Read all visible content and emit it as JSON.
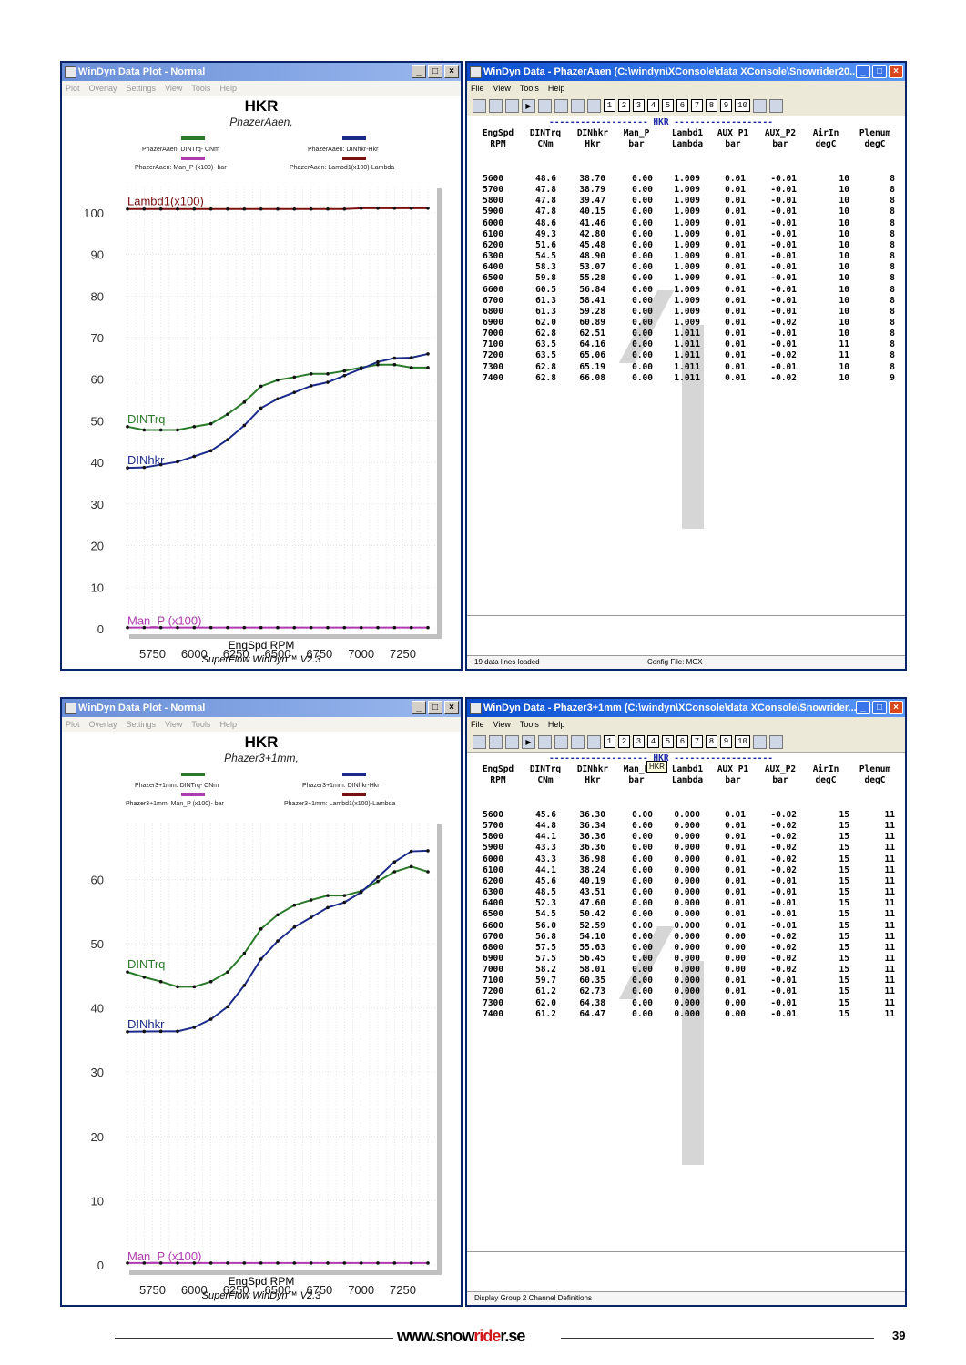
{
  "colors": {
    "trq": "#2a7a2a",
    "hkr": "#1c2a8a",
    "manp": "#b03ab0",
    "lambda": "#7a1010"
  },
  "common_menu": [
    "Plot",
    "Overlay",
    "Settings",
    "View",
    "Tools",
    "Help"
  ],
  "data_menu": [
    "File",
    "View",
    "Tools",
    "Help"
  ],
  "toolbar_numbers": [
    "1",
    "2",
    "3",
    "4",
    "5",
    "6",
    "7",
    "8",
    "9",
    "10"
  ],
  "plot_title": "HKR",
  "x_label": "EngSpd RPM",
  "credit": "SuperFlow WinDyn™ V2.3",
  "x_ticks": [
    "5750",
    "6000",
    "6250",
    "6500",
    "6750",
    "7000",
    "7250"
  ],
  "label_trq": "DINTrq",
  "label_hkr": "DINhkr",
  "label_manp": "Man_P (x100)",
  "label_lambda": "Lambd1(x100)",
  "table_group": "HKR",
  "table_dash_left": "------------------- ",
  "table_dash_right": " -------------------",
  "columns": [
    {
      "h1": "EngSpd",
      "h2": "RPM"
    },
    {
      "h1": "DINTrq",
      "h2": "CNm"
    },
    {
      "h1": "DINhkr",
      "h2": "Hkr"
    },
    {
      "h1": "Man_P",
      "h2": "bar"
    },
    {
      "h1": "Lambd1",
      "h2": "Lambda"
    },
    {
      "h1": "AUX P1",
      "h2": "bar"
    },
    {
      "h1": "AUX_P2",
      "h2": "bar"
    },
    {
      "h1": "AirIn",
      "h2": "degC"
    },
    {
      "h1": "Plenum",
      "h2": "degC"
    }
  ],
  "plot1": {
    "window_title": "WinDyn Data Plot - Normal",
    "subtitle": "PhazerAaen,",
    "legend": [
      "PhazerAaen: DINTrq- CNm",
      "PhazerAaen: DINhkr-Hkr",
      "PhazerAaen: Man_P (x100)- bar",
      "PhazerAaen: Lambd1(x100)-Lambda"
    ],
    "y_ticks": [
      "100",
      "90",
      "80",
      "70",
      "60",
      "50",
      "40",
      "30",
      "20",
      "10",
      "0"
    ]
  },
  "plot2": {
    "window_title": "WinDyn Data Plot - Normal",
    "subtitle": "Phazer3+1mm,",
    "legend": [
      "Phazer3+1mm: DINTrq- CNm",
      "Phazer3+1mm: DINhkr-Hkr",
      "Phazer3+1mm: Man_P (x100)- bar",
      "Phazer3+1mm: Lambd1(x100)-Lambda"
    ],
    "y_ticks": [
      "60",
      "50",
      "40",
      "30",
      "20",
      "10",
      "0"
    ]
  },
  "data1": {
    "window_title": "WinDyn Data - PhazerAaen  (C:\\windyn\\XConsole\\data XConsole\\Snowrider20...",
    "status_left": "19 data lines loaded",
    "status_right": "Config File: MCX",
    "rows": [
      [
        "5600",
        "48.6",
        "38.70",
        "0.00",
        "1.009",
        "0.01",
        "-0.01",
        "10",
        "8"
      ],
      [
        "5700",
        "47.8",
        "38.79",
        "0.00",
        "1.009",
        "0.01",
        "-0.01",
        "10",
        "8"
      ],
      [
        "5800",
        "47.8",
        "39.47",
        "0.00",
        "1.009",
        "0.01",
        "-0.01",
        "10",
        "8"
      ],
      [
        "5900",
        "47.8",
        "40.15",
        "0.00",
        "1.009",
        "0.01",
        "-0.01",
        "10",
        "8"
      ],
      [
        "6000",
        "48.6",
        "41.46",
        "0.00",
        "1.009",
        "0.01",
        "-0.01",
        "10",
        "8"
      ],
      [
        "6100",
        "49.3",
        "42.80",
        "0.00",
        "1.009",
        "0.01",
        "-0.01",
        "10",
        "8"
      ],
      [
        "6200",
        "51.6",
        "45.48",
        "0.00",
        "1.009",
        "0.01",
        "-0.01",
        "10",
        "8"
      ],
      [
        "6300",
        "54.5",
        "48.90",
        "0.00",
        "1.009",
        "0.01",
        "-0.01",
        "10",
        "8"
      ],
      [
        "6400",
        "58.3",
        "53.07",
        "0.00",
        "1.009",
        "0.01",
        "-0.01",
        "10",
        "8"
      ],
      [
        "6500",
        "59.8",
        "55.28",
        "0.00",
        "1.009",
        "0.01",
        "-0.01",
        "10",
        "8"
      ],
      [
        "6600",
        "60.5",
        "56.84",
        "0.00",
        "1.009",
        "0.01",
        "-0.01",
        "10",
        "8"
      ],
      [
        "6700",
        "61.3",
        "58.41",
        "0.00",
        "1.009",
        "0.01",
        "-0.01",
        "10",
        "8"
      ],
      [
        "6800",
        "61.3",
        "59.28",
        "0.00",
        "1.009",
        "0.01",
        "-0.01",
        "10",
        "8"
      ],
      [
        "6900",
        "62.0",
        "60.89",
        "0.00",
        "1.009",
        "0.01",
        "-0.02",
        "10",
        "8"
      ],
      [
        "7000",
        "62.8",
        "62.51",
        "0.00",
        "1.011",
        "0.01",
        "-0.01",
        "10",
        "8"
      ],
      [
        "7100",
        "63.5",
        "64.16",
        "0.00",
        "1.011",
        "0.01",
        "-0.01",
        "11",
        "8"
      ],
      [
        "7200",
        "63.5",
        "65.06",
        "0.00",
        "1.011",
        "0.01",
        "-0.02",
        "11",
        "8"
      ],
      [
        "7300",
        "62.8",
        "65.19",
        "0.00",
        "1.011",
        "0.01",
        "-0.01",
        "10",
        "8"
      ],
      [
        "7400",
        "62.8",
        "66.08",
        "0.00",
        "1.011",
        "0.01",
        "-0.02",
        "10",
        "9"
      ]
    ]
  },
  "data2": {
    "window_title": "WinDyn Data - Phazer3+1mm  (C:\\windyn\\XConsole\\data XConsole\\Snowrider...",
    "status_left": "Display Group 2 Channel Definitions",
    "tooltip": "HKR",
    "rows": [
      [
        "5600",
        "45.6",
        "36.30",
        "0.00",
        "0.000",
        "0.01",
        "-0.02",
        "15",
        "11"
      ],
      [
        "5700",
        "44.8",
        "36.34",
        "0.00",
        "0.000",
        "0.01",
        "-0.02",
        "15",
        "11"
      ],
      [
        "5800",
        "44.1",
        "36.36",
        "0.00",
        "0.000",
        "0.01",
        "-0.02",
        "15",
        "11"
      ],
      [
        "5900",
        "43.3",
        "36.36",
        "0.00",
        "0.000",
        "0.01",
        "-0.02",
        "15",
        "11"
      ],
      [
        "6000",
        "43.3",
        "36.98",
        "0.00",
        "0.000",
        "0.01",
        "-0.02",
        "15",
        "11"
      ],
      [
        "6100",
        "44.1",
        "38.24",
        "0.00",
        "0.000",
        "0.01",
        "-0.02",
        "15",
        "11"
      ],
      [
        "6200",
        "45.6",
        "40.19",
        "0.00",
        "0.000",
        "0.01",
        "-0.01",
        "15",
        "11"
      ],
      [
        "6300",
        "48.5",
        "43.51",
        "0.00",
        "0.000",
        "0.01",
        "-0.01",
        "15",
        "11"
      ],
      [
        "6400",
        "52.3",
        "47.60",
        "0.00",
        "0.000",
        "0.01",
        "-0.01",
        "15",
        "11"
      ],
      [
        "6500",
        "54.5",
        "50.42",
        "0.00",
        "0.000",
        "0.01",
        "-0.01",
        "15",
        "11"
      ],
      [
        "6600",
        "56.0",
        "52.59",
        "0.00",
        "0.000",
        "0.01",
        "-0.01",
        "15",
        "11"
      ],
      [
        "6700",
        "56.8",
        "54.10",
        "0.00",
        "0.000",
        "0.00",
        "-0.02",
        "15",
        "11"
      ],
      [
        "6800",
        "57.5",
        "55.63",
        "0.00",
        "0.000",
        "0.00",
        "-0.02",
        "15",
        "11"
      ],
      [
        "6900",
        "57.5",
        "56.45",
        "0.00",
        "0.000",
        "0.00",
        "-0.02",
        "15",
        "11"
      ],
      [
        "7000",
        "58.2",
        "58.01",
        "0.00",
        "0.000",
        "0.00",
        "-0.02",
        "15",
        "11"
      ],
      [
        "7100",
        "59.7",
        "60.35",
        "0.00",
        "0.000",
        "0.01",
        "-0.01",
        "15",
        "11"
      ],
      [
        "7200",
        "61.2",
        "62.73",
        "0.00",
        "0.000",
        "0.01",
        "-0.01",
        "15",
        "11"
      ],
      [
        "7300",
        "62.0",
        "64.38",
        "0.00",
        "0.000",
        "0.00",
        "-0.01",
        "15",
        "11"
      ],
      [
        "7400",
        "61.2",
        "64.47",
        "0.00",
        "0.000",
        "0.00",
        "-0.01",
        "15",
        "11"
      ]
    ]
  },
  "chart_data": [
    {
      "type": "line",
      "title": "HKR",
      "subtitle": "PhazerAaen,",
      "xlabel": "EngSpd RPM",
      "ylim": [
        0,
        105
      ],
      "xlim": [
        5600,
        7400
      ],
      "x": [
        5600,
        5700,
        5800,
        5900,
        6000,
        6100,
        6200,
        6300,
        6400,
        6500,
        6600,
        6700,
        6800,
        6900,
        7000,
        7100,
        7200,
        7300,
        7400
      ],
      "series": [
        {
          "name": "DINTrq",
          "values": [
            48.6,
            47.8,
            47.8,
            47.8,
            48.6,
            49.3,
            51.6,
            54.5,
            58.3,
            59.8,
            60.5,
            61.3,
            61.3,
            62.0,
            62.8,
            63.5,
            63.5,
            62.8,
            62.8
          ]
        },
        {
          "name": "DINhkr",
          "values": [
            38.7,
            38.79,
            39.47,
            40.15,
            41.46,
            42.8,
            45.48,
            48.9,
            53.07,
            55.28,
            56.84,
            58.41,
            59.28,
            60.89,
            62.51,
            64.16,
            65.06,
            65.19,
            66.08
          ]
        },
        {
          "name": "Man_P (x100)",
          "values": [
            0.3,
            0.3,
            0.3,
            0.3,
            0.3,
            0.3,
            0.3,
            0.3,
            0.3,
            0.3,
            0.3,
            0.3,
            0.3,
            0.3,
            0.3,
            0.3,
            0.3,
            0.3,
            0.3
          ]
        },
        {
          "name": "Lambd1(x100)",
          "values": [
            100.9,
            100.9,
            100.9,
            100.9,
            100.9,
            100.9,
            100.9,
            100.9,
            100.9,
            100.9,
            100.9,
            100.9,
            100.9,
            100.9,
            101.1,
            101.1,
            101.1,
            101.1,
            101.1
          ]
        }
      ],
      "grid": true
    },
    {
      "type": "line",
      "title": "HKR",
      "subtitle": "Phazer3+1mm,",
      "xlabel": "EngSpd RPM",
      "ylim": [
        0,
        68
      ],
      "xlim": [
        5600,
        7400
      ],
      "x": [
        5600,
        5700,
        5800,
        5900,
        6000,
        6100,
        6200,
        6300,
        6400,
        6500,
        6600,
        6700,
        6800,
        6900,
        7000,
        7100,
        7200,
        7300,
        7400
      ],
      "series": [
        {
          "name": "DINTrq",
          "values": [
            45.6,
            44.8,
            44.1,
            43.3,
            43.3,
            44.1,
            45.6,
            48.5,
            52.3,
            54.5,
            56.0,
            56.8,
            57.5,
            57.5,
            58.2,
            59.7,
            61.2,
            62.0,
            61.2
          ]
        },
        {
          "name": "DINhkr",
          "values": [
            36.3,
            36.34,
            36.36,
            36.36,
            36.98,
            38.24,
            40.19,
            43.51,
            47.6,
            50.42,
            52.59,
            54.1,
            55.63,
            56.45,
            58.01,
            60.35,
            62.73,
            64.38,
            64.47
          ]
        },
        {
          "name": "Man_P (x100)",
          "values": [
            0.3,
            0.3,
            0.3,
            0.3,
            0.3,
            0.3,
            0.3,
            0.3,
            0.3,
            0.3,
            0.3,
            0.3,
            0.3,
            0.3,
            0.3,
            0.3,
            0.3,
            0.3,
            0.3
          ]
        }
      ],
      "grid": true
    }
  ],
  "footer": {
    "logo_main": "www.snow",
    "logo_red": "ride",
    "logo_tail": "r.se",
    "page_number": "39"
  }
}
